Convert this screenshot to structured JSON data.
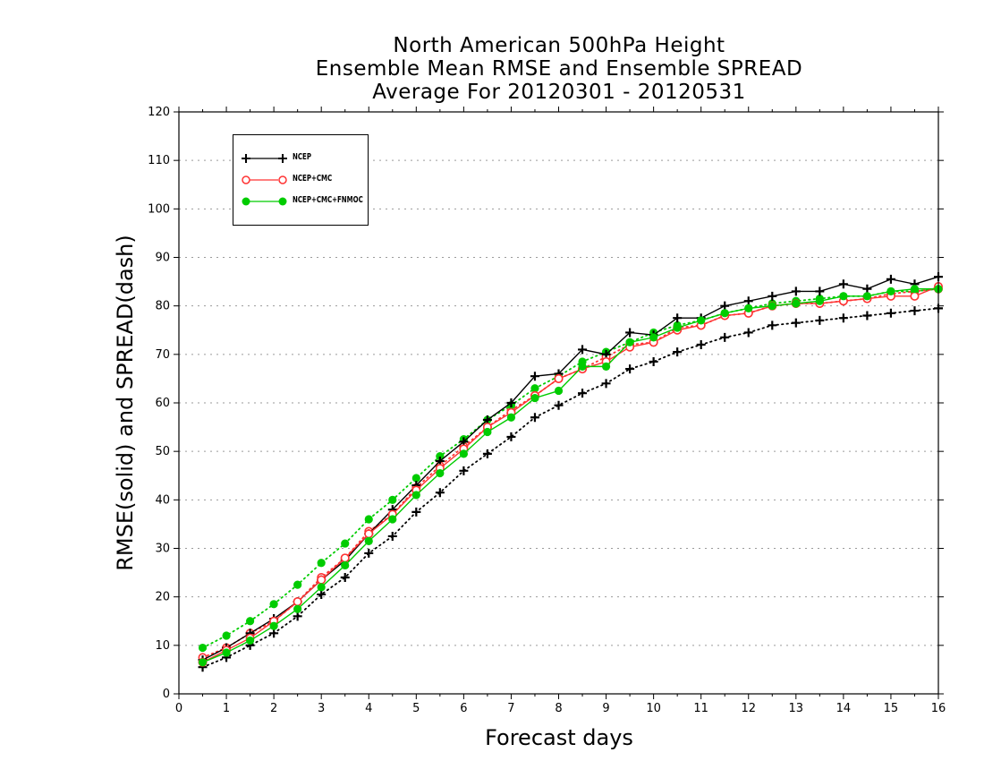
{
  "title": [
    "North American 500hPa Height",
    "Ensemble Mean RMSE and Ensemble SPREAD",
    "Average For 20120301 - 20120531"
  ],
  "chart_data": {
    "type": "line",
    "title": "North American 500hPa Height / Ensemble Mean RMSE and Ensemble SPREAD / Average For 20120301 - 20120531",
    "xlabel": "Forecast days",
    "ylabel": "RMSE(solid) and SPREAD(dash)",
    "xlim": [
      0,
      16
    ],
    "ylim": [
      0,
      120
    ],
    "xticks": [
      0,
      1,
      2,
      3,
      4,
      5,
      6,
      7,
      8,
      9,
      10,
      11,
      12,
      13,
      14,
      15,
      16
    ],
    "yticks": [
      0,
      10,
      20,
      30,
      40,
      50,
      60,
      70,
      80,
      90,
      100,
      110,
      120
    ],
    "grid": "horizontal dotted",
    "legend_position": "top-left",
    "x": [
      0.5,
      1,
      1.5,
      2,
      2.5,
      3,
      3.5,
      4,
      4.5,
      5,
      5.5,
      6,
      6.5,
      7,
      7.5,
      8,
      8.5,
      9,
      9.5,
      10,
      10.5,
      11,
      11.5,
      12,
      12.5,
      13,
      13.5,
      14,
      14.5,
      15,
      15.5,
      16
    ],
    "series": [
      {
        "name": "NCEP",
        "kind": "RMSE",
        "style": "solid",
        "marker": "plus",
        "color": "#000000",
        "values": [
          7.0,
          9.5,
          12.5,
          15.5,
          19.0,
          23.5,
          27.5,
          33.0,
          38.0,
          43.0,
          48.0,
          52.0,
          56.5,
          60.0,
          65.5,
          66.0,
          71.0,
          70.0,
          74.5,
          74.0,
          77.5,
          77.5,
          80.0,
          81.0,
          82.0,
          83.0,
          83.0,
          84.5,
          83.5,
          85.5,
          84.5,
          86.0
        ]
      },
      {
        "name": "NCEP+CMC",
        "kind": "RMSE",
        "style": "solid",
        "marker": "open-circle",
        "color": "#ff3333",
        "values": [
          6.5,
          9.0,
          11.5,
          15.0,
          19.0,
          23.5,
          28.0,
          33.0,
          37.0,
          42.0,
          46.5,
          50.5,
          55.0,
          58.0,
          61.5,
          65.0,
          67.0,
          68.5,
          71.5,
          72.5,
          75.0,
          76.0,
          78.0,
          78.5,
          80.0,
          80.5,
          80.5,
          81.0,
          81.5,
          82.0,
          82.0,
          84.0
        ]
      },
      {
        "name": "NCEP+CMC+FNMOC",
        "kind": "RMSE",
        "style": "solid",
        "marker": "filled-circle",
        "color": "#00cc00",
        "values": [
          6.5,
          8.5,
          11.0,
          14.0,
          17.5,
          22.0,
          26.5,
          31.5,
          36.0,
          41.0,
          45.5,
          49.5,
          54.0,
          57.0,
          61.0,
          62.5,
          67.5,
          67.5,
          72.5,
          73.5,
          75.5,
          77.0,
          78.5,
          79.5,
          80.0,
          80.5,
          81.0,
          82.0,
          82.0,
          83.0,
          83.5,
          83.5
        ]
      },
      {
        "name": "NCEP",
        "kind": "SPREAD",
        "style": "dotted",
        "marker": "plus",
        "color": "#000000",
        "values": [
          5.5,
          7.5,
          10.0,
          12.5,
          16.0,
          20.5,
          24.0,
          29.0,
          32.5,
          37.5,
          41.5,
          46.0,
          49.5,
          53.0,
          57.0,
          59.5,
          62.0,
          64.0,
          67.0,
          68.5,
          70.5,
          72.0,
          73.5,
          74.5,
          76.0,
          76.5,
          77.0,
          77.5,
          78.0,
          78.5,
          79.0,
          79.5
        ]
      },
      {
        "name": "NCEP+CMC",
        "kind": "SPREAD",
        "style": "dotted",
        "marker": "open-circle",
        "color": "#ff3333",
        "values": [
          7.5,
          9.5,
          12.5,
          15.0,
          19.0,
          24.0,
          28.0,
          33.5,
          37.0,
          42.5,
          47.0,
          51.0,
          55.0,
          58.5,
          61.5,
          65.0,
          67.0,
          69.5,
          72.0,
          72.5,
          75.5,
          76.0,
          78.0,
          78.5,
          80.0,
          80.5,
          80.5,
          81.0,
          81.5,
          82.5,
          83.0,
          83.5
        ]
      },
      {
        "name": "NCEP+CMC+FNMOC",
        "kind": "SPREAD",
        "style": "dotted",
        "marker": "filled-circle",
        "color": "#00cc00",
        "values": [
          9.5,
          12.0,
          15.0,
          18.5,
          22.5,
          27.0,
          31.0,
          36.0,
          40.0,
          44.5,
          49.0,
          52.5,
          56.5,
          59.5,
          63.0,
          65.5,
          68.5,
          70.5,
          72.5,
          74.5,
          76.0,
          77.0,
          78.5,
          79.5,
          80.5,
          81.0,
          81.5,
          82.0,
          82.0,
          83.0,
          83.0,
          83.5
        ]
      }
    ]
  },
  "legend": [
    {
      "label": "NCEP",
      "marker": "plus",
      "color": "#000000"
    },
    {
      "label": "NCEP+CMC",
      "marker": "open-circle",
      "color": "#ff3333"
    },
    {
      "label": "NCEP+CMC+FNMOC",
      "marker": "filled-circle",
      "color": "#00cc00"
    }
  ]
}
